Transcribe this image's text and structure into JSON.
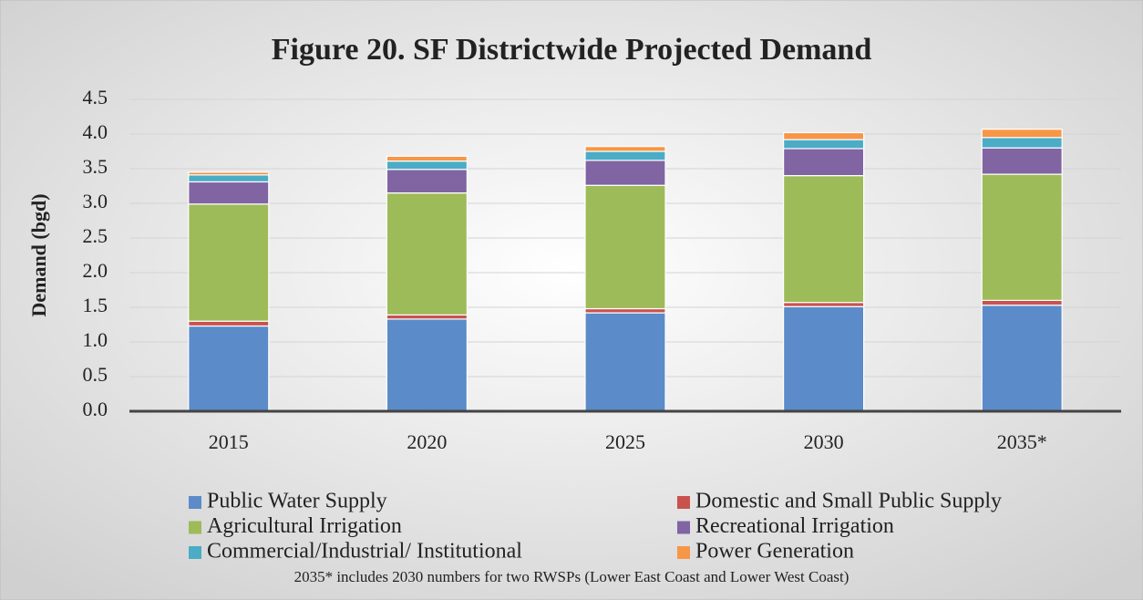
{
  "chart_data": {
    "type": "stacked_bar",
    "title": "Figure 20. SF Districtwide Projected Demand",
    "y_label": "Demand (bgd)",
    "note": "2035* includes 2030 numbers for two RWSPs (Lower East Coast and Lower West Coast)",
    "categories": [
      "2015",
      "2020",
      "2025",
      "2030",
      "2035*"
    ],
    "series": [
      {
        "name": "Public Water Supply",
        "color": "#5b8bc8",
        "values": [
          1.23,
          1.33,
          1.42,
          1.51,
          1.53
        ]
      },
      {
        "name": "Domestic and Small Public Supply",
        "color": "#c9524f",
        "values": [
          0.07,
          0.06,
          0.06,
          0.06,
          0.07
        ]
      },
      {
        "name": "Agricultural Irrigation",
        "color": "#9dbb59",
        "values": [
          1.69,
          1.76,
          1.78,
          1.83,
          1.82
        ]
      },
      {
        "name": "Recreational Irrigation",
        "color": "#8065a2",
        "values": [
          0.32,
          0.34,
          0.36,
          0.39,
          0.38
        ]
      },
      {
        "name": "Commercial/Industrial/ Institutional",
        "color": "#4bacc6",
        "values": [
          0.1,
          0.12,
          0.13,
          0.13,
          0.15
        ]
      },
      {
        "name": "Power Generation",
        "color": "#f79646",
        "values": [
          0.04,
          0.07,
          0.07,
          0.1,
          0.12
        ]
      }
    ],
    "ylim": [
      0,
      4.5
    ],
    "yticks": [
      {
        "value": 0,
        "label": "0.0"
      },
      0.5,
      {
        "value": 1,
        "label": "1.0"
      },
      1.5,
      {
        "value": 2,
        "label": "2.0"
      },
      2.5,
      {
        "value": 3,
        "label": "3.0"
      },
      3.5,
      {
        "value": 4,
        "label": "4.0"
      },
      4.5
    ],
    "grid": true
  }
}
